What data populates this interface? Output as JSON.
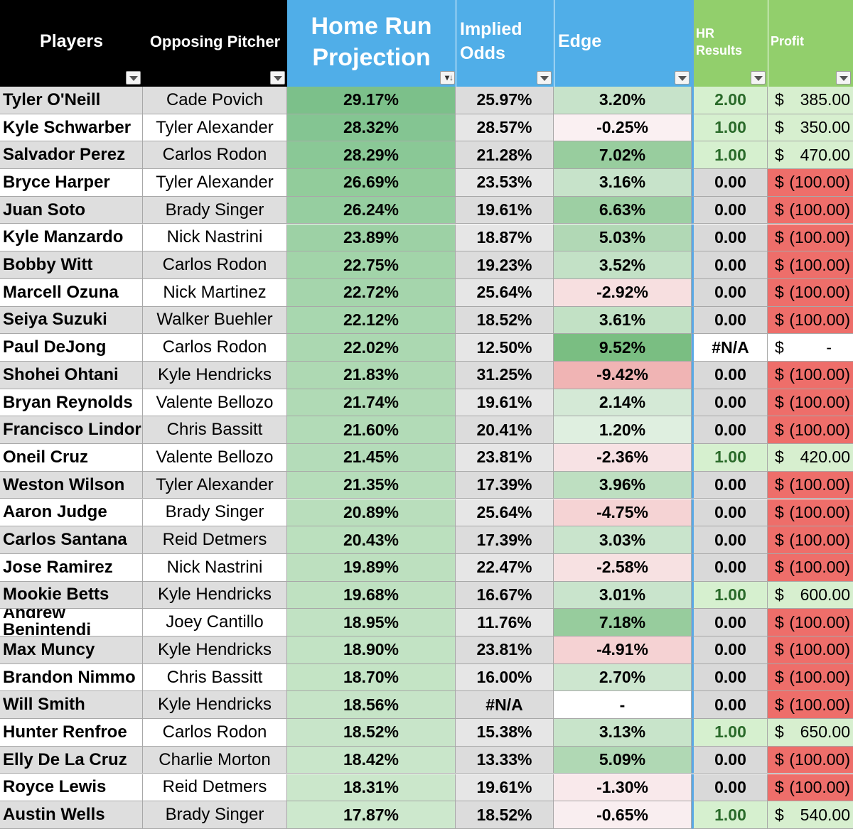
{
  "headers": {
    "players": "Players",
    "pitcher": "Opposing Pitcher",
    "projection": [
      "Home Run",
      "Projection"
    ],
    "odds": [
      "Implied",
      "Odds"
    ],
    "edge": "Edge",
    "results": [
      "HR",
      "Results"
    ],
    "profit": "Profit"
  },
  "colors": {
    "header_black": "#000000",
    "header_blue": "#50aee8",
    "header_green": "#92cf6c",
    "loss_red": "#ee6e6a",
    "win_green": "#d7efcf"
  },
  "rows": [
    {
      "player": "Tyler O'Neill",
      "pitcher": "Cade Povich",
      "projection": "29.17%",
      "odds": "25.97%",
      "edge": "3.20%",
      "edge_value": 3.2,
      "result": "2.00",
      "profit_sign": "$",
      "profit": "385.00",
      "result_win": true
    },
    {
      "player": "Kyle Schwarber",
      "pitcher": "Tyler Alexander",
      "projection": "28.32%",
      "odds": "28.57%",
      "edge": "-0.25%",
      "edge_value": -0.25,
      "result": "1.00",
      "profit_sign": "$",
      "profit": "350.00",
      "result_win": true
    },
    {
      "player": "Salvador Perez",
      "pitcher": "Carlos Rodon",
      "projection": "28.29%",
      "odds": "21.28%",
      "edge": "7.02%",
      "edge_value": 7.02,
      "result": "1.00",
      "profit_sign": "$",
      "profit": "470.00",
      "result_win": true
    },
    {
      "player": "Bryce Harper",
      "pitcher": "Tyler Alexander",
      "projection": "26.69%",
      "odds": "23.53%",
      "edge": "3.16%",
      "edge_value": 3.16,
      "result": "0.00",
      "profit_sign": "$",
      "profit": "(100.00)",
      "result_win": false
    },
    {
      "player": "Juan Soto",
      "pitcher": "Brady Singer",
      "projection": "26.24%",
      "odds": "19.61%",
      "edge": "6.63%",
      "edge_value": 6.63,
      "result": "0.00",
      "profit_sign": "$",
      "profit": "(100.00)",
      "result_win": false
    },
    {
      "player": "Kyle Manzardo",
      "pitcher": "Nick Nastrini",
      "projection": "23.89%",
      "odds": "18.87%",
      "edge": "5.03%",
      "edge_value": 5.03,
      "result": "0.00",
      "profit_sign": "$",
      "profit": "(100.00)",
      "result_win": false
    },
    {
      "player": "Bobby Witt",
      "pitcher": "Carlos Rodon",
      "projection": "22.75%",
      "odds": "19.23%",
      "edge": "3.52%",
      "edge_value": 3.52,
      "result": "0.00",
      "profit_sign": "$",
      "profit": "(100.00)",
      "result_win": false
    },
    {
      "player": "Marcell Ozuna",
      "pitcher": "Nick Martinez",
      "projection": "22.72%",
      "odds": "25.64%",
      "edge": "-2.92%",
      "edge_value": -2.92,
      "result": "0.00",
      "profit_sign": "$",
      "profit": "(100.00)",
      "result_win": false
    },
    {
      "player": "Seiya Suzuki",
      "pitcher": "Walker Buehler",
      "projection": "22.12%",
      "odds": "18.52%",
      "edge": "3.61%",
      "edge_value": 3.61,
      "result": "0.00",
      "profit_sign": "$",
      "profit": "(100.00)",
      "result_win": false
    },
    {
      "player": "Paul DeJong",
      "pitcher": "Carlos Rodon",
      "projection": "22.02%",
      "odds": "12.50%",
      "edge": "9.52%",
      "edge_value": 9.52,
      "result": "#N/A",
      "profit_sign": "$",
      "profit": "-",
      "result_win": null
    },
    {
      "player": "Shohei Ohtani",
      "pitcher": "Kyle Hendricks",
      "projection": "21.83%",
      "odds": "31.25%",
      "edge": "-9.42%",
      "edge_value": -9.42,
      "result": "0.00",
      "profit_sign": "$",
      "profit": "(100.00)",
      "result_win": false
    },
    {
      "player": "Bryan Reynolds",
      "pitcher": "Valente Bellozo",
      "projection": "21.74%",
      "odds": "19.61%",
      "edge": "2.14%",
      "edge_value": 2.14,
      "result": "0.00",
      "profit_sign": "$",
      "profit": "(100.00)",
      "result_win": false
    },
    {
      "player": "Francisco Lindor",
      "pitcher": "Chris Bassitt",
      "projection": "21.60%",
      "odds": "20.41%",
      "edge": "1.20%",
      "edge_value": 1.2,
      "result": "0.00",
      "profit_sign": "$",
      "profit": "(100.00)",
      "result_win": false
    },
    {
      "player": "Oneil Cruz",
      "pitcher": "Valente Bellozo",
      "projection": "21.45%",
      "odds": "23.81%",
      "edge": "-2.36%",
      "edge_value": -2.36,
      "result": "1.00",
      "profit_sign": "$",
      "profit": "420.00",
      "result_win": true
    },
    {
      "player": "Weston Wilson",
      "pitcher": "Tyler Alexander",
      "projection": "21.35%",
      "odds": "17.39%",
      "edge": "3.96%",
      "edge_value": 3.96,
      "result": "0.00",
      "profit_sign": "$",
      "profit": "(100.00)",
      "result_win": false
    },
    {
      "player": "Aaron Judge",
      "pitcher": "Brady Singer",
      "projection": "20.89%",
      "odds": "25.64%",
      "edge": "-4.75%",
      "edge_value": -4.75,
      "result": "0.00",
      "profit_sign": "$",
      "profit": "(100.00)",
      "result_win": false
    },
    {
      "player": "Carlos Santana",
      "pitcher": "Reid Detmers",
      "projection": "20.43%",
      "odds": "17.39%",
      "edge": "3.03%",
      "edge_value": 3.03,
      "result": "0.00",
      "profit_sign": "$",
      "profit": "(100.00)",
      "result_win": false
    },
    {
      "player": "Jose Ramirez",
      "pitcher": "Nick Nastrini",
      "projection": "19.89%",
      "odds": "22.47%",
      "edge": "-2.58%",
      "edge_value": -2.58,
      "result": "0.00",
      "profit_sign": "$",
      "profit": "(100.00)",
      "result_win": false
    },
    {
      "player": "Mookie Betts",
      "pitcher": "Kyle Hendricks",
      "projection": "19.68%",
      "odds": "16.67%",
      "edge": "3.01%",
      "edge_value": 3.01,
      "result": "1.00",
      "profit_sign": "$",
      "profit": "600.00",
      "result_win": true
    },
    {
      "player": "Andrew Benintendi",
      "pitcher": "Joey Cantillo",
      "projection": "18.95%",
      "odds": "11.76%",
      "edge": "7.18%",
      "edge_value": 7.18,
      "result": "0.00",
      "profit_sign": "$",
      "profit": "(100.00)",
      "result_win": false,
      "wrapped": true
    },
    {
      "player": "Max Muncy",
      "pitcher": "Kyle Hendricks",
      "projection": "18.90%",
      "odds": "23.81%",
      "edge": "-4.91%",
      "edge_value": -4.91,
      "result": "0.00",
      "profit_sign": "$",
      "profit": "(100.00)",
      "result_win": false
    },
    {
      "player": "Brandon Nimmo",
      "pitcher": "Chris Bassitt",
      "projection": "18.70%",
      "odds": "16.00%",
      "edge": "2.70%",
      "edge_value": 2.7,
      "result": "0.00",
      "profit_sign": "$",
      "profit": "(100.00)",
      "result_win": false
    },
    {
      "player": "Will Smith",
      "pitcher": "Kyle Hendricks",
      "projection": "18.56%",
      "odds": "#N/A",
      "edge": "-",
      "edge_value": 0,
      "result": "0.00",
      "profit_sign": "$",
      "profit": "(100.00)",
      "result_win": false
    },
    {
      "player": "Hunter Renfroe",
      "pitcher": "Carlos Rodon",
      "projection": "18.52%",
      "odds": "15.38%",
      "edge": "3.13%",
      "edge_value": 3.13,
      "result": "1.00",
      "profit_sign": "$",
      "profit": "650.00",
      "result_win": true
    },
    {
      "player": "Elly De La Cruz",
      "pitcher": "Charlie Morton",
      "projection": "18.42%",
      "odds": "13.33%",
      "edge": "5.09%",
      "edge_value": 5.09,
      "result": "0.00",
      "profit_sign": "$",
      "profit": "(100.00)",
      "result_win": false
    },
    {
      "player": "Royce Lewis",
      "pitcher": "Reid Detmers",
      "projection": "18.31%",
      "odds": "19.61%",
      "edge": "-1.30%",
      "edge_value": -1.3,
      "result": "0.00",
      "profit_sign": "$",
      "profit": "(100.00)",
      "result_win": false
    },
    {
      "player": "Austin Wells",
      "pitcher": "Brady Singer",
      "projection": "17.87%",
      "odds": "18.52%",
      "edge": "-0.65%",
      "edge_value": -0.65,
      "result": "1.00",
      "profit_sign": "$",
      "profit": "540.00",
      "result_win": true
    }
  ]
}
